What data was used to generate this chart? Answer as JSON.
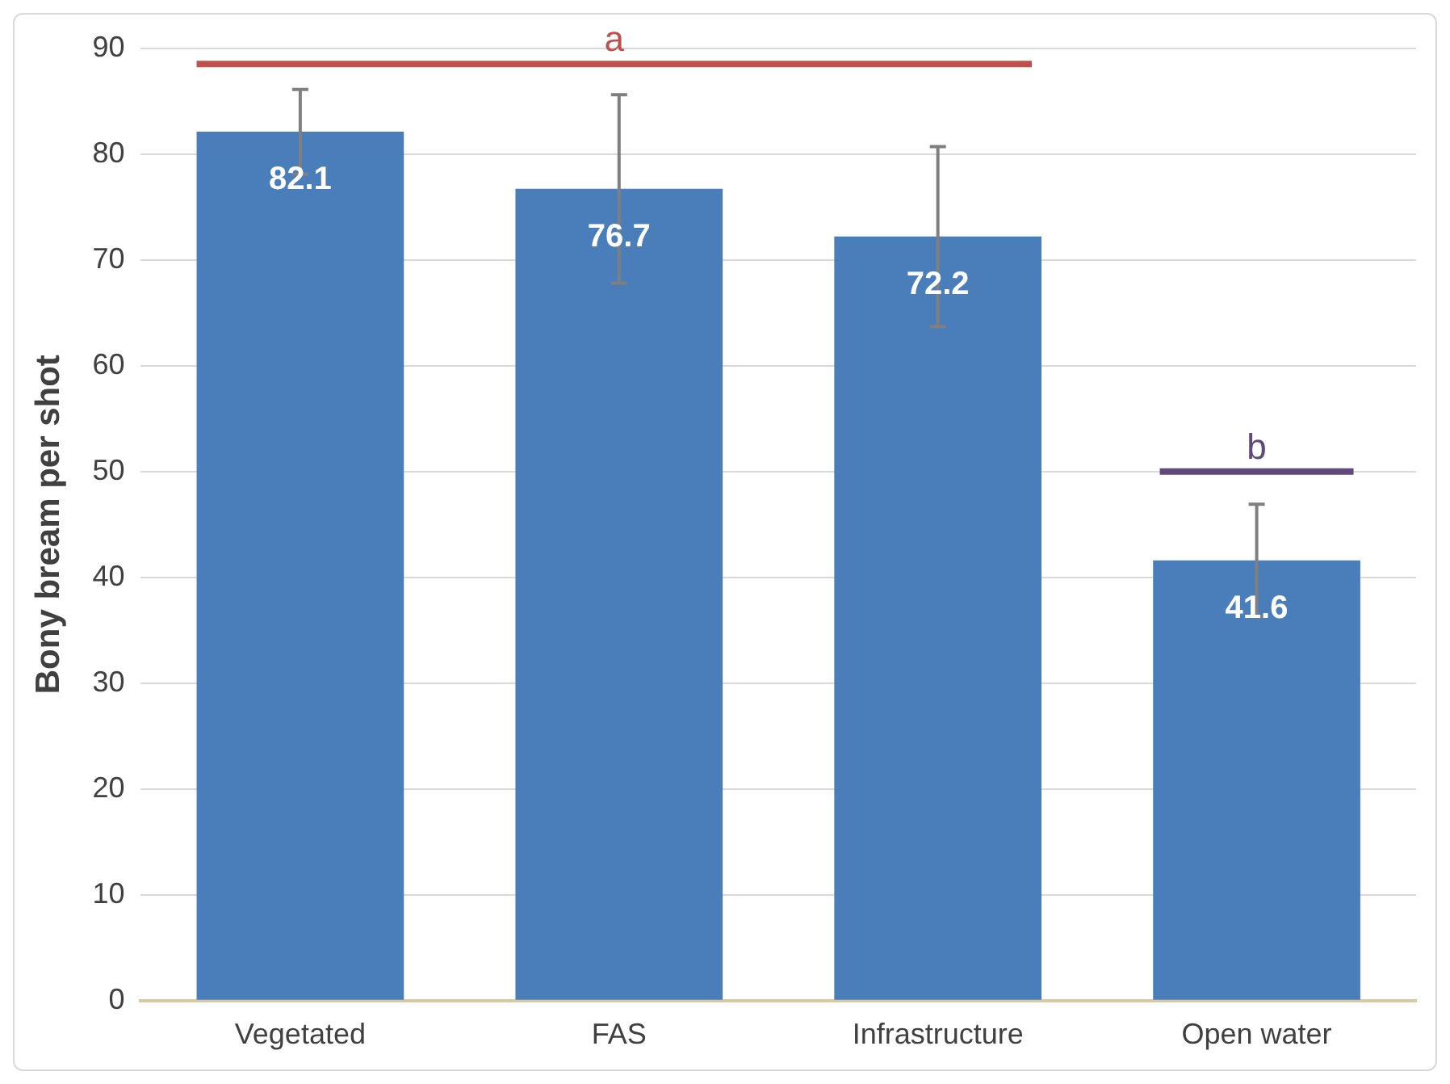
{
  "chart_data": {
    "type": "bar",
    "ylabel": "Bony bream per shot",
    "categories": [
      "Vegetated",
      "FAS",
      "Infrastructure",
      "Open water"
    ],
    "values": [
      82.1,
      76.7,
      72.2,
      41.6
    ],
    "errors": [
      4,
      8.9,
      8.5,
      5.3
    ],
    "color": "#4a7ebb",
    "ylim": [
      0,
      90
    ],
    "yticks": [
      0,
      10,
      20,
      30,
      40,
      50,
      60,
      70,
      80,
      90
    ],
    "grid": "y",
    "data_labels": true,
    "annotations": [
      "a",
      "b"
    ]
  }
}
